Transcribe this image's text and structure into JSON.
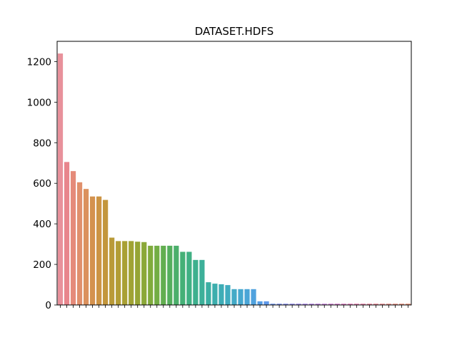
{
  "chart_data": {
    "type": "bar",
    "title": "DATASET.HDFS",
    "xlabel": "",
    "ylabel": "",
    "ylim": [
      0,
      1300
    ],
    "yticks": [
      0,
      200,
      400,
      600,
      800,
      1000,
      1200
    ],
    "ytick_labels": [
      "0",
      "200",
      "400",
      "600",
      "800",
      "1000",
      "1200"
    ],
    "x_tick_labels_note": "illegible, overlapping",
    "grid": false,
    "legend": "none",
    "values": [
      1240,
      705,
      660,
      605,
      572,
      535,
      535,
      518,
      332,
      315,
      315,
      315,
      312,
      310,
      292,
      292,
      292,
      292,
      292,
      262,
      262,
      222,
      222,
      112,
      105,
      102,
      98,
      78,
      78,
      78,
      78,
      18,
      18,
      6,
      6,
      6,
      6,
      6,
      6,
      6,
      6,
      6,
      6,
      6,
      6,
      6,
      6,
      6,
      6,
      6,
      6,
      6,
      6,
      6,
      6
    ],
    "colors": [
      "#e8919b",
      "#e8858c",
      "#e58b7a",
      "#e0906c",
      "#db915d",
      "#d4924f",
      "#cc9444",
      "#c3963c",
      "#b99a38",
      "#b29d35",
      "#a9a034",
      "#a0a334",
      "#96a535",
      "#8ba838",
      "#80ab3d",
      "#72ad45",
      "#62ae50",
      "#54ae5d",
      "#4baf6b",
      "#45b077",
      "#40b083",
      "#3eb08e",
      "#3db099",
      "#3cafa3",
      "#3caead",
      "#3eadb6",
      "#40acbf",
      "#43aac7",
      "#46a8cf",
      "#4aa5d7",
      "#50a2de",
      "#569ee5",
      "#5f99ea",
      "#6a93ee",
      "#768df0",
      "#828af1",
      "#8e87f0",
      "#9a84ee",
      "#a681eb",
      "#b27fe7",
      "#bd7ce2",
      "#c77bdc",
      "#d079d5",
      "#d878cd",
      "#df78c4",
      "#e479bb",
      "#e87bb1",
      "#ea7ea7",
      "#eb829d",
      "#ec8594",
      "#ec888c",
      "#ec8b85",
      "#ed8d7f",
      "#ed8f79",
      "#ee9174"
    ]
  }
}
